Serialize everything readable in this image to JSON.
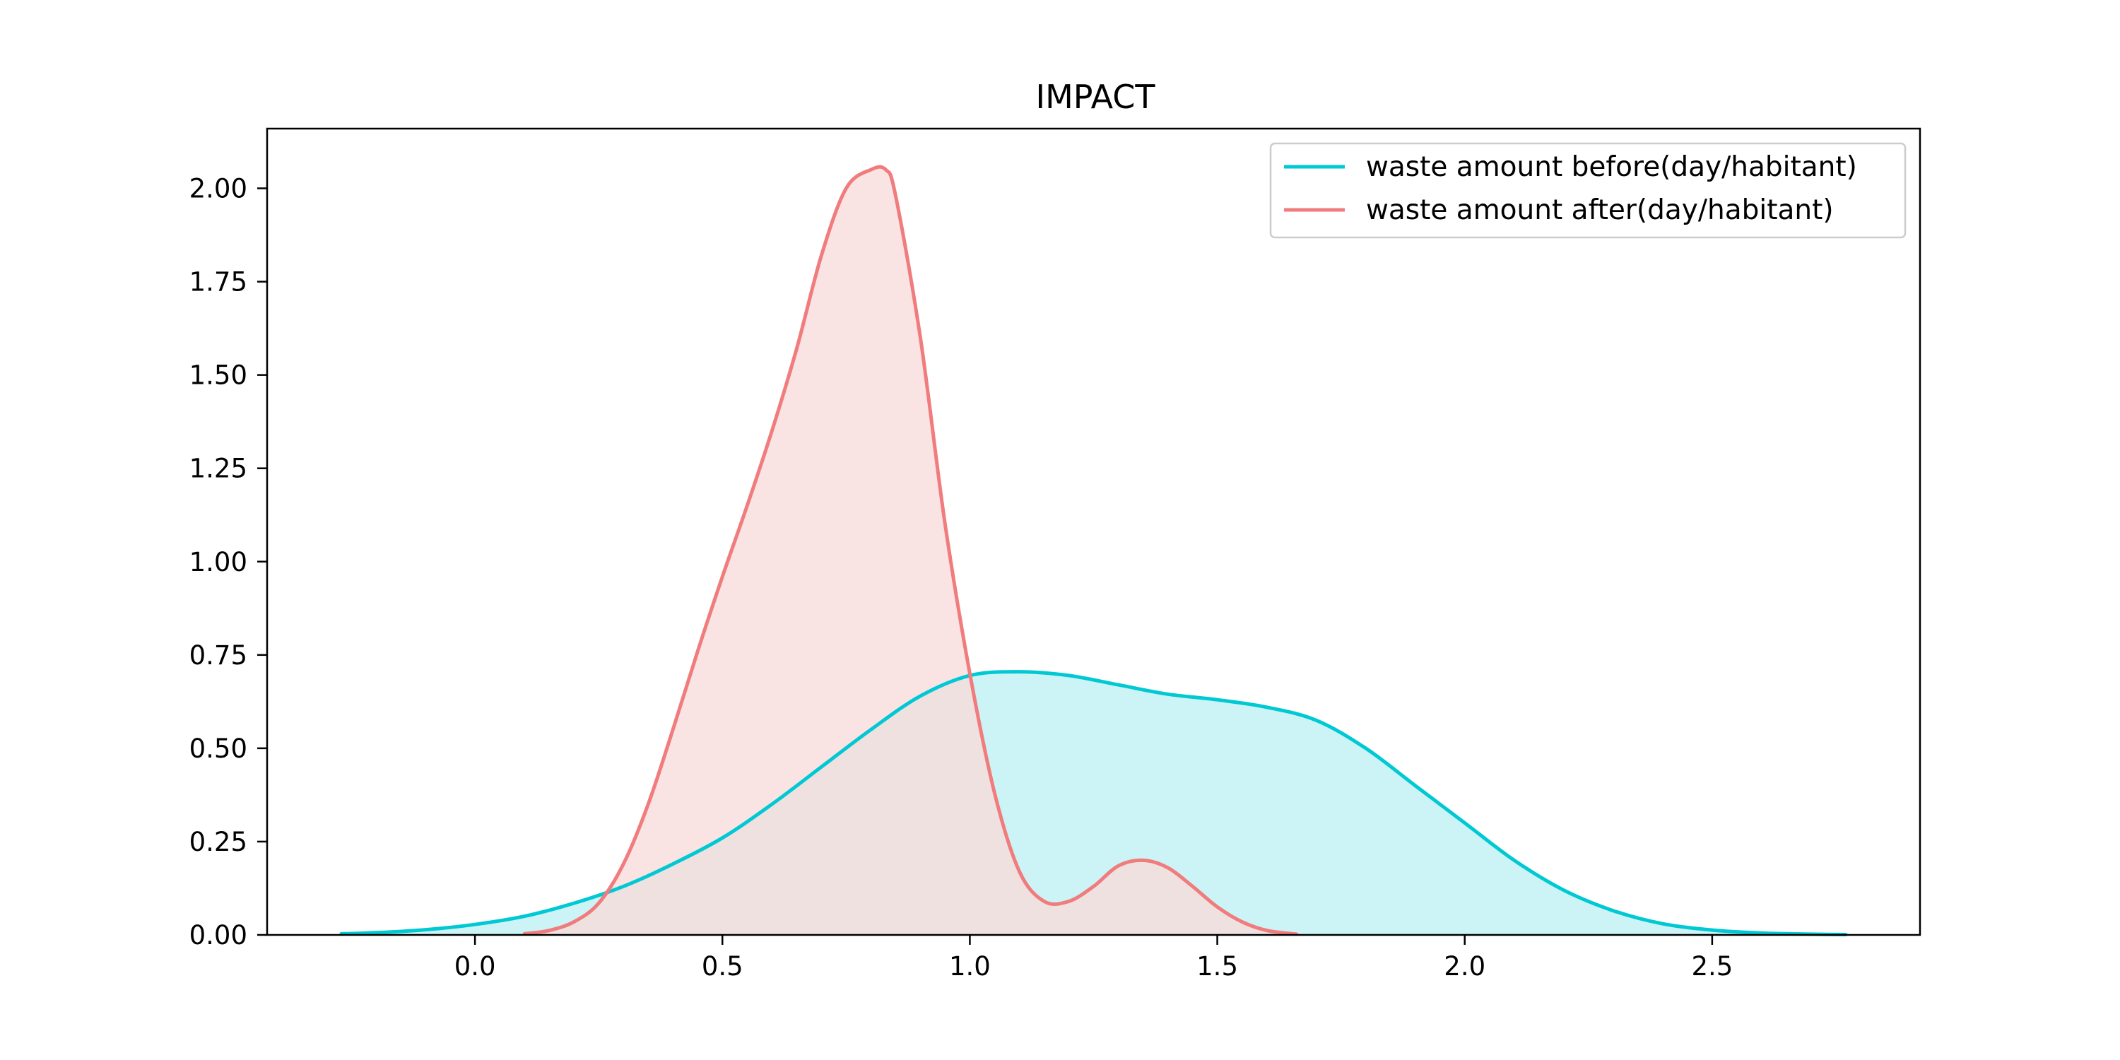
{
  "chart_data": {
    "type": "area",
    "title": "IMPACT",
    "xlabel": "",
    "ylabel": "",
    "xlim": [
      -0.42,
      2.92
    ],
    "ylim": [
      0.0,
      2.16
    ],
    "xticks": [
      0.0,
      0.5,
      1.0,
      1.5,
      2.0,
      2.5
    ],
    "xtick_labels": [
      "0.0",
      "0.5",
      "1.0",
      "1.5",
      "2.0",
      "2.5"
    ],
    "yticks": [
      0.0,
      0.25,
      0.5,
      0.75,
      1.0,
      1.25,
      1.5,
      1.75,
      2.0
    ],
    "ytick_labels": [
      "0.00",
      "0.25",
      "0.50",
      "0.75",
      "1.00",
      "1.25",
      "1.50",
      "1.75",
      "2.00"
    ],
    "grid": false,
    "legend_position": "top-right",
    "series": [
      {
        "name": "waste amount before(day/habitant)",
        "color": "#00c9d3",
        "fill": "#bff0f2",
        "x": [
          -0.27,
          -0.2,
          -0.1,
          0.0,
          0.1,
          0.2,
          0.3,
          0.4,
          0.5,
          0.6,
          0.7,
          0.8,
          0.9,
          1.0,
          1.1,
          1.2,
          1.3,
          1.4,
          1.5,
          1.6,
          1.7,
          1.8,
          1.9,
          2.0,
          2.1,
          2.2,
          2.3,
          2.4,
          2.5,
          2.6,
          2.7,
          2.77
        ],
        "y": [
          0.003,
          0.006,
          0.014,
          0.028,
          0.05,
          0.085,
          0.13,
          0.19,
          0.26,
          0.35,
          0.45,
          0.55,
          0.64,
          0.695,
          0.705,
          0.695,
          0.67,
          0.645,
          0.63,
          0.61,
          0.575,
          0.5,
          0.4,
          0.3,
          0.2,
          0.12,
          0.065,
          0.03,
          0.013,
          0.005,
          0.002,
          0.001
        ]
      },
      {
        "name": "waste amount after(day/habitant)",
        "color": "#f07c7d",
        "fill": "#f9dcdc",
        "x": [
          0.1,
          0.15,
          0.2,
          0.25,
          0.3,
          0.35,
          0.4,
          0.45,
          0.5,
          0.55,
          0.6,
          0.65,
          0.7,
          0.75,
          0.8,
          0.83,
          0.85,
          0.9,
          0.95,
          1.0,
          1.05,
          1.1,
          1.15,
          1.2,
          1.25,
          1.3,
          1.35,
          1.4,
          1.45,
          1.5,
          1.55,
          1.6,
          1.66
        ],
        "y": [
          0.003,
          0.012,
          0.035,
          0.085,
          0.19,
          0.35,
          0.55,
          0.76,
          0.96,
          1.15,
          1.35,
          1.57,
          1.82,
          2.0,
          2.05,
          2.05,
          1.98,
          1.6,
          1.1,
          0.7,
          0.38,
          0.17,
          0.09,
          0.09,
          0.13,
          0.185,
          0.2,
          0.18,
          0.13,
          0.075,
          0.035,
          0.012,
          0.002
        ]
      }
    ]
  }
}
